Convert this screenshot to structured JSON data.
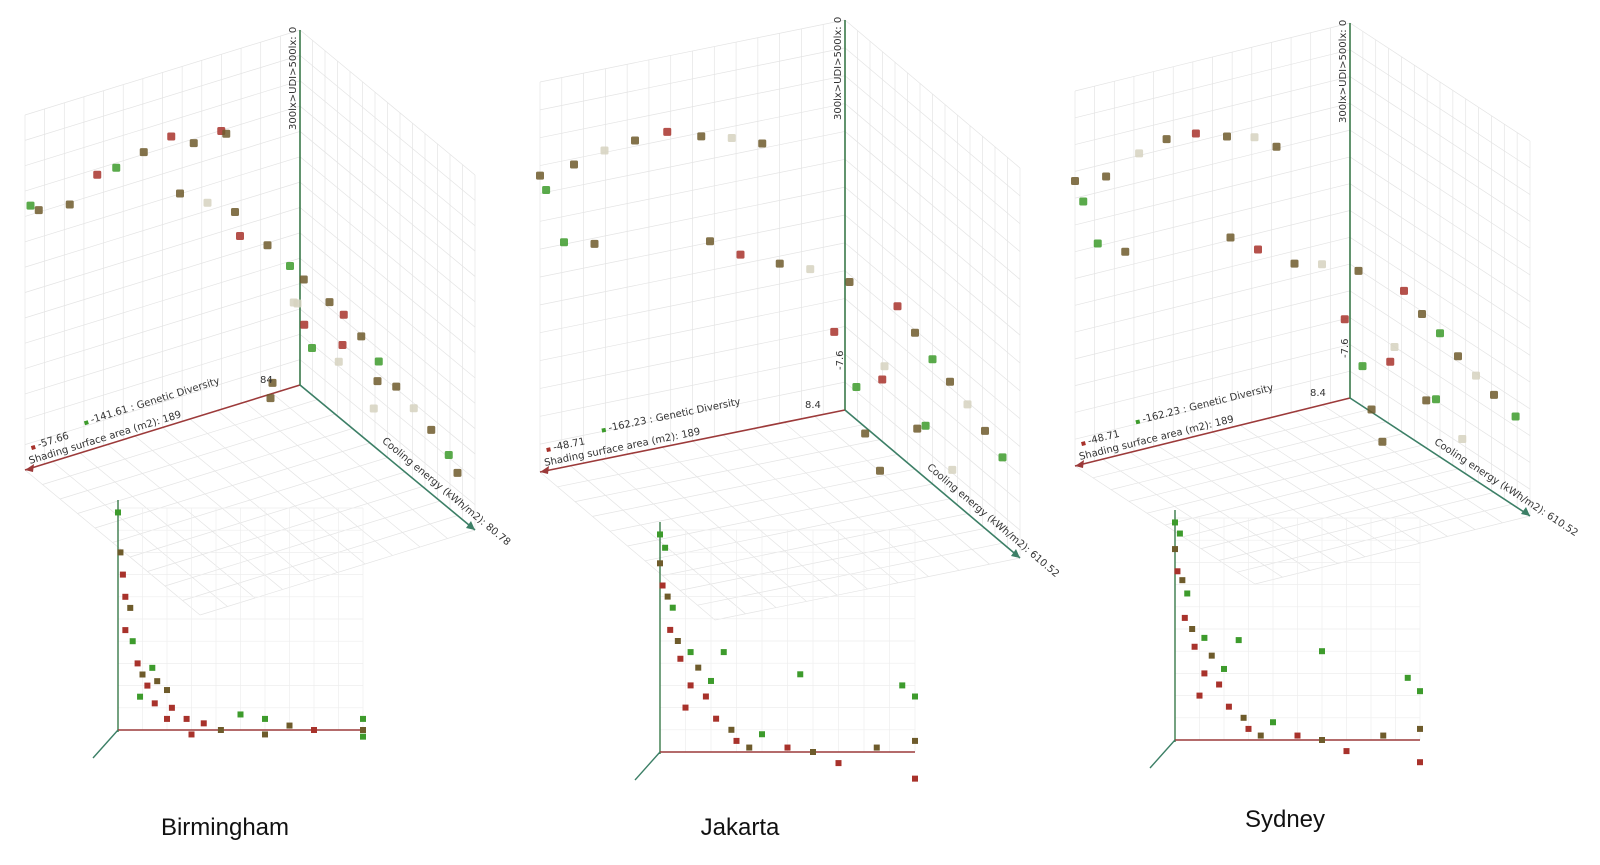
{
  "colors": [
    "#a8322b",
    "#3d9b2c",
    "#6e5b2b",
    "#d6d2bf"
  ],
  "panels": [
    {
      "city": "Birmingham",
      "axis_z": "300lx>UDI>500lx: 0",
      "axis_x": "Shading surface area (m2): 189",
      "axis_y": "Cooling energy (kWh/m2): 80.78",
      "legend_red": "-57.66",
      "legend_green": "-141.61 : Genetic Diversity",
      "origin_label": "84",
      "points": [
        [
          0.98,
          0,
          0.74,
          1
        ],
        [
          0.95,
          0,
          0.72,
          2
        ],
        [
          0.85,
          0.02,
          0.72,
          2
        ],
        [
          0.75,
          0.02,
          0.78,
          0
        ],
        [
          0.7,
          0.05,
          0.8,
          1
        ],
        [
          0.6,
          0.05,
          0.82,
          2
        ],
        [
          0.5,
          0.05,
          0.84,
          0
        ],
        [
          0.45,
          0.1,
          0.83,
          2
        ],
        [
          0.35,
          0.1,
          0.84,
          0
        ],
        [
          0.3,
          0.05,
          0.8,
          2
        ],
        [
          0.5,
          0.1,
          0.7,
          2
        ],
        [
          0.4,
          0.1,
          0.65,
          3
        ],
        [
          0.3,
          0.1,
          0.6,
          2
        ],
        [
          0.25,
          0.05,
          0.5,
          0
        ],
        [
          0.15,
          0.05,
          0.45,
          2
        ],
        [
          0.1,
          0.1,
          0.4,
          1
        ],
        [
          0.05,
          0.1,
          0.35,
          2
        ],
        [
          0.02,
          0.2,
          0.32,
          2
        ],
        [
          0,
          0.25,
          0.3,
          0
        ],
        [
          0,
          0.35,
          0.28,
          2
        ],
        [
          0,
          0.45,
          0.25,
          1
        ],
        [
          0,
          0.55,
          0.22,
          2
        ],
        [
          0,
          0.65,
          0.2,
          3
        ],
        [
          0,
          0.75,
          0.18,
          2
        ],
        [
          0,
          0.85,
          0.15,
          1
        ],
        [
          0,
          0.9,
          0.12,
          2
        ],
        [
          0.05,
          0.3,
          0.2,
          3
        ],
        [
          0.05,
          0.5,
          0.15,
          3
        ],
        [
          0.02,
          0.1,
          0.15,
          1
        ],
        [
          0.1,
          0.0,
          0.03,
          2
        ],
        [
          0.15,
          0.2,
          0.35,
          3
        ],
        [
          0.1,
          0.4,
          0.3,
          0
        ],
        [
          0.1,
          0.6,
          0.28,
          2
        ],
        [
          0.2,
          0.3,
          0.4,
          3
        ],
        [
          0.08,
          0.15,
          0.25,
          0
        ],
        [
          0.12,
          0.02,
          0.0,
          2
        ]
      ],
      "points2d": [
        [
          0.0,
          0.98,
          1
        ],
        [
          0.01,
          0.8,
          2
        ],
        [
          0.02,
          0.7,
          0
        ],
        [
          0.03,
          0.6,
          0
        ],
        [
          0.05,
          0.55,
          2
        ],
        [
          0.03,
          0.45,
          0
        ],
        [
          0.06,
          0.4,
          1
        ],
        [
          0.08,
          0.3,
          0
        ],
        [
          0.1,
          0.25,
          2
        ],
        [
          0.12,
          0.2,
          0
        ],
        [
          0.14,
          0.28,
          1
        ],
        [
          0.16,
          0.22,
          2
        ],
        [
          0.2,
          0.18,
          2
        ],
        [
          0.15,
          0.12,
          0
        ],
        [
          0.22,
          0.1,
          0
        ],
        [
          0.28,
          0.05,
          0
        ],
        [
          0.35,
          0.03,
          0
        ],
        [
          0.42,
          0.0,
          2
        ],
        [
          0.5,
          0.07,
          1
        ],
        [
          0.6,
          0.05,
          1
        ],
        [
          0.6,
          -0.02,
          2
        ],
        [
          0.7,
          0.02,
          2
        ],
        [
          0.8,
          0.0,
          0
        ],
        [
          1.0,
          0.05,
          1
        ],
        [
          1.0,
          0.0,
          2
        ],
        [
          1.0,
          -0.03,
          1
        ],
        [
          0.2,
          0.05,
          0
        ],
        [
          0.3,
          -0.02,
          0
        ],
        [
          0.09,
          0.15,
          1
        ]
      ]
    },
    {
      "city": "Jakarta",
      "axis_z": "300lx>UDI>500lx: 0",
      "axis_x": "Shading surface area (m2): 189",
      "axis_y": "Cooling energy (kWh/m2): 610.52",
      "legend_red": "-48.71",
      "legend_green": "-162.23 : Genetic Diversity",
      "origin_label": "8.4",
      "axis_z_mid": "-7.6",
      "points": [
        [
          1,
          0,
          0.76,
          2
        ],
        [
          0.98,
          0,
          0.72,
          1
        ],
        [
          0.9,
          0.02,
          0.78,
          2
        ],
        [
          0.8,
          0.02,
          0.8,
          3
        ],
        [
          0.7,
          0.02,
          0.81,
          2
        ],
        [
          0.6,
          0.03,
          0.82,
          0
        ],
        [
          0.5,
          0.05,
          0.8,
          2
        ],
        [
          0.4,
          0.05,
          0.78,
          3
        ],
        [
          0.3,
          0.05,
          0.75,
          2
        ],
        [
          0.95,
          0.05,
          0.6,
          1
        ],
        [
          0.85,
          0.05,
          0.58,
          2
        ],
        [
          0.5,
          0.1,
          0.55,
          2
        ],
        [
          0.4,
          0.1,
          0.5,
          0
        ],
        [
          0.3,
          0.15,
          0.48,
          2
        ],
        [
          0.2,
          0.15,
          0.45,
          3
        ],
        [
          0.1,
          0.2,
          0.42,
          2
        ],
        [
          0,
          0.3,
          0.38,
          0
        ],
        [
          0,
          0.4,
          0.35,
          2
        ],
        [
          0,
          0.5,
          0.32,
          1
        ],
        [
          0,
          0.6,
          0.3,
          2
        ],
        [
          0,
          0.7,
          0.28,
          3
        ],
        [
          0,
          0.8,
          0.25,
          2
        ],
        [
          0,
          0.9,
          0.22,
          1
        ],
        [
          0.05,
          0.3,
          0.2,
          0
        ],
        [
          0.05,
          0.5,
          0.15,
          2
        ],
        [
          0.05,
          0.7,
          0.12,
          3
        ],
        [
          0.02,
          0.1,
          0.1,
          1
        ],
        [
          0.02,
          0.15,
          0.0,
          2
        ],
        [
          0.0,
          0.2,
          -0.08,
          2
        ],
        [
          0.1,
          0.4,
          0.28,
          3
        ],
        [
          0.15,
          0.2,
          0.3,
          0
        ],
        [
          0.08,
          0.6,
          0.2,
          1
        ]
      ],
      "points2d": [
        [
          0.0,
          0.98,
          1
        ],
        [
          0.02,
          0.92,
          1
        ],
        [
          0.0,
          0.85,
          2
        ],
        [
          0.01,
          0.75,
          0
        ],
        [
          0.03,
          0.7,
          2
        ],
        [
          0.05,
          0.65,
          1
        ],
        [
          0.04,
          0.55,
          0
        ],
        [
          0.07,
          0.5,
          2
        ],
        [
          0.08,
          0.42,
          0
        ],
        [
          0.12,
          0.45,
          1
        ],
        [
          0.15,
          0.38,
          2
        ],
        [
          0.12,
          0.3,
          0
        ],
        [
          0.18,
          0.25,
          0
        ],
        [
          0.2,
          0.32,
          1
        ],
        [
          0.25,
          0.45,
          1
        ],
        [
          0.22,
          0.15,
          0
        ],
        [
          0.3,
          0.05,
          0
        ],
        [
          0.35,
          0.02,
          2
        ],
        [
          0.4,
          0.08,
          1
        ],
        [
          0.5,
          0.02,
          0
        ],
        [
          0.55,
          0.35,
          1
        ],
        [
          0.6,
          0.0,
          2
        ],
        [
          0.7,
          -0.05,
          0
        ],
        [
          0.85,
          0.02,
          2
        ],
        [
          0.95,
          0.3,
          1
        ],
        [
          1.0,
          0.25,
          1
        ],
        [
          1.0,
          0.05,
          2
        ],
        [
          1.0,
          -0.12,
          0
        ],
        [
          0.28,
          0.1,
          2
        ],
        [
          0.1,
          0.2,
          0
        ]
      ]
    },
    {
      "city": "Sydney",
      "axis_z": "300lx>UDI>500lx: 0",
      "axis_x": "Shading surface area (m2): 189",
      "axis_y": "Cooling energy (kWh/m2): 610.52",
      "legend_red": "-48.71",
      "legend_green": "-162.23 : Genetic Diversity",
      "origin_label": "8.4",
      "axis_z_mid": "-7.6",
      "points": [
        [
          1,
          0,
          0.76,
          2
        ],
        [
          0.97,
          0,
          0.7,
          1
        ],
        [
          0.9,
          0.02,
          0.76,
          2
        ],
        [
          0.78,
          0.02,
          0.8,
          3
        ],
        [
          0.68,
          0.02,
          0.82,
          2
        ],
        [
          0.58,
          0.03,
          0.82,
          0
        ],
        [
          0.48,
          0.05,
          0.8,
          2
        ],
        [
          0.38,
          0.05,
          0.78,
          3
        ],
        [
          0.3,
          0.05,
          0.74,
          2
        ],
        [
          0.95,
          0.05,
          0.6,
          1
        ],
        [
          0.85,
          0.05,
          0.56,
          2
        ],
        [
          0.5,
          0.1,
          0.55,
          2
        ],
        [
          0.4,
          0.1,
          0.5,
          0
        ],
        [
          0.3,
          0.15,
          0.46,
          2
        ],
        [
          0.2,
          0.15,
          0.44,
          3
        ],
        [
          0.1,
          0.2,
          0.42,
          2
        ],
        [
          0,
          0.3,
          0.38,
          0
        ],
        [
          0,
          0.4,
          0.35,
          2
        ],
        [
          0,
          0.5,
          0.33,
          1
        ],
        [
          0,
          0.6,
          0.3,
          2
        ],
        [
          0,
          0.7,
          0.28,
          3
        ],
        [
          0,
          0.8,
          0.26,
          2
        ],
        [
          0,
          0.92,
          0.24,
          1
        ],
        [
          0.05,
          0.3,
          0.2,
          0
        ],
        [
          0.05,
          0.5,
          0.16,
          2
        ],
        [
          0.05,
          0.7,
          0.12,
          3
        ],
        [
          0.02,
          0.1,
          0.12,
          1
        ],
        [
          0.02,
          0.15,
          0.02,
          2
        ],
        [
          0.0,
          0.18,
          -0.06,
          2
        ],
        [
          0.1,
          0.4,
          0.28,
          3
        ],
        [
          0.15,
          0.2,
          0.3,
          0
        ],
        [
          0.08,
          0.6,
          0.2,
          1
        ]
      ],
      "points2d": [
        [
          0.0,
          0.98,
          1
        ],
        [
          0.02,
          0.93,
          1
        ],
        [
          0.0,
          0.86,
          2
        ],
        [
          0.01,
          0.76,
          0
        ],
        [
          0.03,
          0.72,
          2
        ],
        [
          0.05,
          0.66,
          1
        ],
        [
          0.04,
          0.55,
          0
        ],
        [
          0.07,
          0.5,
          2
        ],
        [
          0.08,
          0.42,
          0
        ],
        [
          0.12,
          0.46,
          1
        ],
        [
          0.15,
          0.38,
          2
        ],
        [
          0.12,
          0.3,
          0
        ],
        [
          0.18,
          0.25,
          0
        ],
        [
          0.2,
          0.32,
          1
        ],
        [
          0.26,
          0.45,
          1
        ],
        [
          0.22,
          0.15,
          0
        ],
        [
          0.3,
          0.05,
          0
        ],
        [
          0.35,
          0.02,
          2
        ],
        [
          0.4,
          0.08,
          1
        ],
        [
          0.5,
          0.02,
          0
        ],
        [
          0.6,
          0.4,
          1
        ],
        [
          0.6,
          0.0,
          2
        ],
        [
          0.7,
          -0.05,
          0
        ],
        [
          0.85,
          0.02,
          2
        ],
        [
          0.95,
          0.28,
          1
        ],
        [
          1.0,
          0.22,
          1
        ],
        [
          1.0,
          0.05,
          2
        ],
        [
          1.0,
          -0.1,
          0
        ],
        [
          0.28,
          0.1,
          2
        ],
        [
          0.1,
          0.2,
          0
        ]
      ]
    }
  ]
}
